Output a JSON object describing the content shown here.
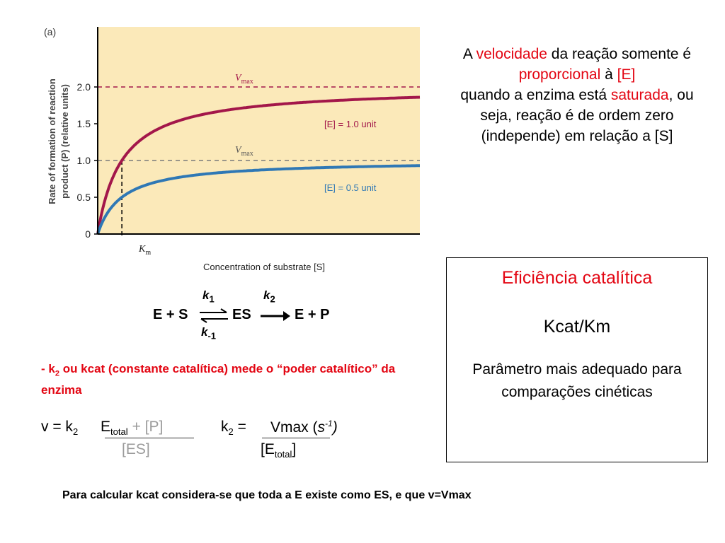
{
  "chart_data": {
    "type": "line",
    "panel_label": "(a)",
    "xlabel": "Concentration of substrate [S]",
    "ylabel_line1": "Rate of formation of reaction",
    "ylabel_line2": "product (P) (relative units)",
    "yticks": [
      "0",
      "0.5",
      "1.0",
      "1.5",
      "2.0"
    ],
    "ylim": [
      0,
      2.3
    ],
    "xlim": [
      0,
      10
    ],
    "km_label": "K",
    "km_sub": "m",
    "km_value": 0.75,
    "vmax_label": "V",
    "vmax_sub": "max",
    "series": [
      {
        "name": "[E] = 1.0 unit",
        "vmax": 2.0,
        "km": 0.75,
        "color": "#a3174a"
      },
      {
        "name": "[E] = 0.5 unit",
        "vmax": 1.0,
        "km": 0.75,
        "color": "#2f78b5"
      }
    ],
    "colors": {
      "background": "#fbe9b9",
      "axis": "#000000",
      "dash": "#a3174a",
      "dash2": "#7a7a7a"
    }
  },
  "scheme": {
    "e_plus_s": "E + S",
    "es": "ES",
    "e_plus_p": "E + P",
    "k1": "k",
    "k1_sub": "1",
    "k_1": "k",
    "k_1_sub": "-1",
    "k2": "k",
    "k2_sub": "2"
  },
  "right_text": {
    "p1": "A ",
    "p2": "velocidade",
    "p3": " da reação somente é ",
    "p4": "proporcional",
    "p5": " à ",
    "p6": "[E]",
    "p7": "quando a enzima está ",
    "p8": "saturada",
    "p9": ", ou seja, reação é de ordem zero (independe) em relação a [S]"
  },
  "box": {
    "title": "Eficiência catalítica",
    "formula": "Kcat/Km",
    "desc": "Parâmetro mais adequado para comparações cinéticas"
  },
  "kcat_note": {
    "dash": "-  k",
    "sub": "2",
    "rest": " ou kcat  (constante catalítica) mede o “poder catalítico” da enzima"
  },
  "eq1": {
    "lhs": "v = k",
    "lhs_sub": "2",
    "e": "E",
    "e_sub": "total",
    "plus_p": "+  [P]",
    "es": "[ES]"
  },
  "eq2": {
    "lhs": "k",
    "lhs_sub": "2",
    "eq": " = ",
    "num": "Vmax (",
    "s": "s",
    "s_sup": "-1",
    "close": ")",
    "den_open": "[E",
    "den_sub": "total",
    "den_close": "]"
  },
  "footer": "Para calcular kcat considera-se que toda a E existe como ES, e que v=Vmax"
}
